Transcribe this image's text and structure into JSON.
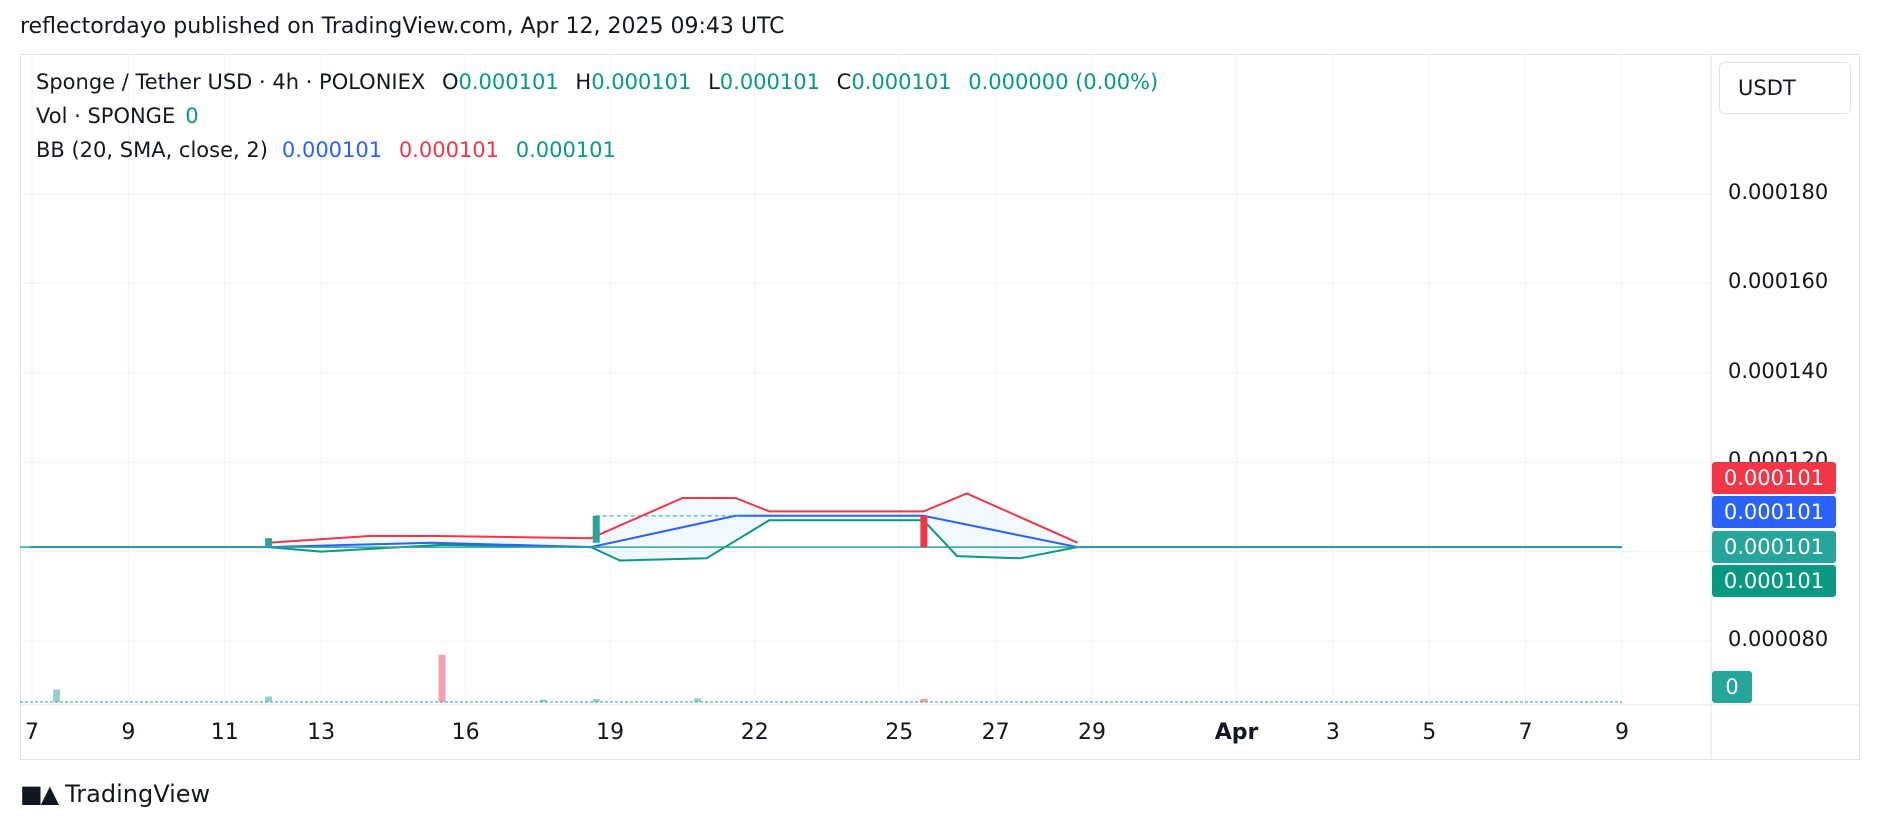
{
  "header": {
    "published": "reflectordayo published on TradingView.com, Apr 12, 2025 09:43 UTC"
  },
  "legend": {
    "symbol": "Sponge / Tether USD · 4h · POLONIEX",
    "o_label": "O",
    "o": "0.000101",
    "h_label": "H",
    "h": "0.000101",
    "l_label": "L",
    "l": "0.000101",
    "c_label": "C",
    "c": "0.000101",
    "change": "0.000000 (0.00%)",
    "vol_label": "Vol · SPONGE",
    "vol": "0",
    "bb_label": "BB (20, SMA, close, 2)",
    "bb_basis": "0.000101",
    "bb_upper": "0.000101",
    "bb_lower": "0.000101"
  },
  "unit": "USDT",
  "badges": {
    "upper": "0.000101",
    "basis": "0.000101",
    "price": "0.000101",
    "lower": "0.000101",
    "volume": "0"
  },
  "colors": {
    "teal": "#089981",
    "blue": "#2962ff",
    "red": "#f23645",
    "price_badge": "#26a69a",
    "lower_badge": "#089981"
  },
  "footer": {
    "brand": "TradingView",
    "logo_icon": "tradingview-logo-icon"
  },
  "chart_data": {
    "type": "line",
    "y_ticks": [
      "0.000180",
      "0.000160",
      "0.000140",
      "0.000120",
      "0.000080"
    ],
    "ylim": [
      6.5e-05,
      0.000195
    ],
    "x_ticks": [
      "7",
      "9",
      "11",
      "13",
      "16",
      "19",
      "22",
      "25",
      "27",
      "29",
      "Apr",
      "3",
      "5",
      "7",
      "9"
    ],
    "x_tick_days": [
      7,
      9,
      11,
      13,
      16,
      19,
      22,
      25,
      27,
      29,
      32,
      34,
      36,
      38,
      40
    ],
    "xlim": [
      6.95,
      42.3
    ],
    "grid": true,
    "series": [
      {
        "points": [
          [
            6.95,
            0.000101
          ],
          [
            11.9,
            0.000101
          ],
          [
            15.3,
            0.000102
          ],
          [
            18.6,
            0.000101
          ],
          [
            21.6,
            0.000108
          ],
          [
            25.5,
            0.000108
          ],
          [
            28.7,
            0.000101
          ],
          [
            40,
            0.000101
          ]
        ]
      },
      {
        "points": [
          [
            11.9,
            0.000102
          ],
          [
            14,
            0.0001035
          ],
          [
            15.4,
            0.0001035
          ],
          [
            18.6,
            0.000103
          ],
          [
            20.5,
            0.000112
          ],
          [
            21.6,
            0.000112
          ],
          [
            22.3,
            0.000109
          ],
          [
            25.5,
            0.000109
          ],
          [
            26.4,
            0.000113
          ],
          [
            28.7,
            0.000102
          ]
        ]
      },
      {
        "points": [
          [
            11.9,
            0.000101
          ],
          [
            13,
            0.0001
          ],
          [
            15.5,
            0.0001015
          ],
          [
            18.6,
            0.000101
          ],
          [
            19.2,
            9.8e-05
          ],
          [
            21,
            9.85e-05
          ],
          [
            22.3,
            0.000107
          ],
          [
            25.5,
            0.000107
          ],
          [
            26.2,
            9.9e-05
          ],
          [
            27.5,
            9.85e-05
          ],
          [
            28.7,
            0.000101
          ]
        ]
      }
    ],
    "volume": [
      {
        "x": 7.5,
        "v": 10,
        "dir": "up"
      },
      {
        "x": 11.9,
        "v": 4.5,
        "dir": "up"
      },
      {
        "x": 15.5,
        "v": 38,
        "dir": "down"
      },
      {
        "x": 17.6,
        "v": 2,
        "dir": "up"
      },
      {
        "x": 18.7,
        "v": 2.5,
        "dir": "up"
      },
      {
        "x": 20.8,
        "v": 3,
        "dir": "up"
      },
      {
        "x": 25.5,
        "v": 2.5,
        "dir": "down"
      }
    ],
    "candles": [
      {
        "x": 11.9,
        "o": 0.000101,
        "c": 0.000103,
        "dir": "up"
      },
      {
        "x": 18.7,
        "o": 0.000102,
        "c": 0.000108,
        "dir": "up"
      },
      {
        "x": 25.5,
        "o": 0.000108,
        "c": 0.000101,
        "dir": "down"
      }
    ]
  }
}
